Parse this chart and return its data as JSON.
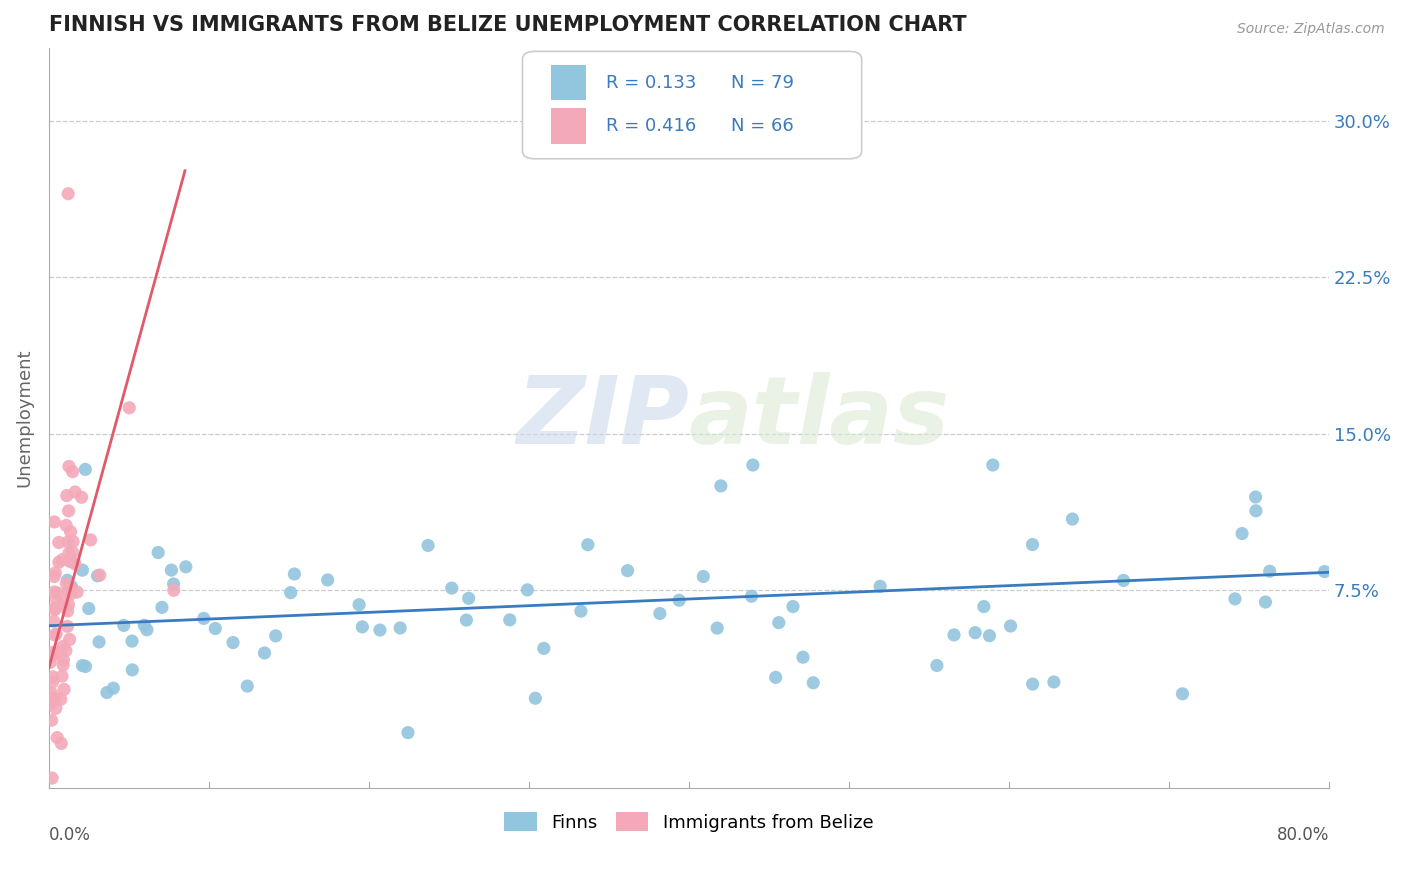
{
  "title": "FINNISH VS IMMIGRANTS FROM BELIZE UNEMPLOYMENT CORRELATION CHART",
  "source": "Source: ZipAtlas.com",
  "ylabel": "Unemployment",
  "ytick_positions": [
    0.075,
    0.15,
    0.225,
    0.3
  ],
  "ytick_labels": [
    "7.5%",
    "15.0%",
    "22.5%",
    "30.0%"
  ],
  "xlim": [
    0.0,
    0.8
  ],
  "ylim": [
    -0.02,
    0.335
  ],
  "legend_R_finns": "R = 0.133",
  "legend_N_finns": "N = 79",
  "legend_R_belize": "R = 0.416",
  "legend_N_belize": "N = 66",
  "color_finns": "#92c5de",
  "color_belize": "#f4a9b8",
  "color_finns_line": "#3a7bbf",
  "color_belize_line": "#e05a6a",
  "color_r_value": "#3a7bbf",
  "color_n_label": "#222222",
  "color_n_value": "#3a7bbf",
  "watermark_zip": "ZIP",
  "watermark_atlas": "atlas",
  "finns_slope": 0.032,
  "finns_intercept": 0.058,
  "belize_slope": 2.8,
  "belize_intercept": 0.038,
  "belize_line_xmax": 0.085
}
